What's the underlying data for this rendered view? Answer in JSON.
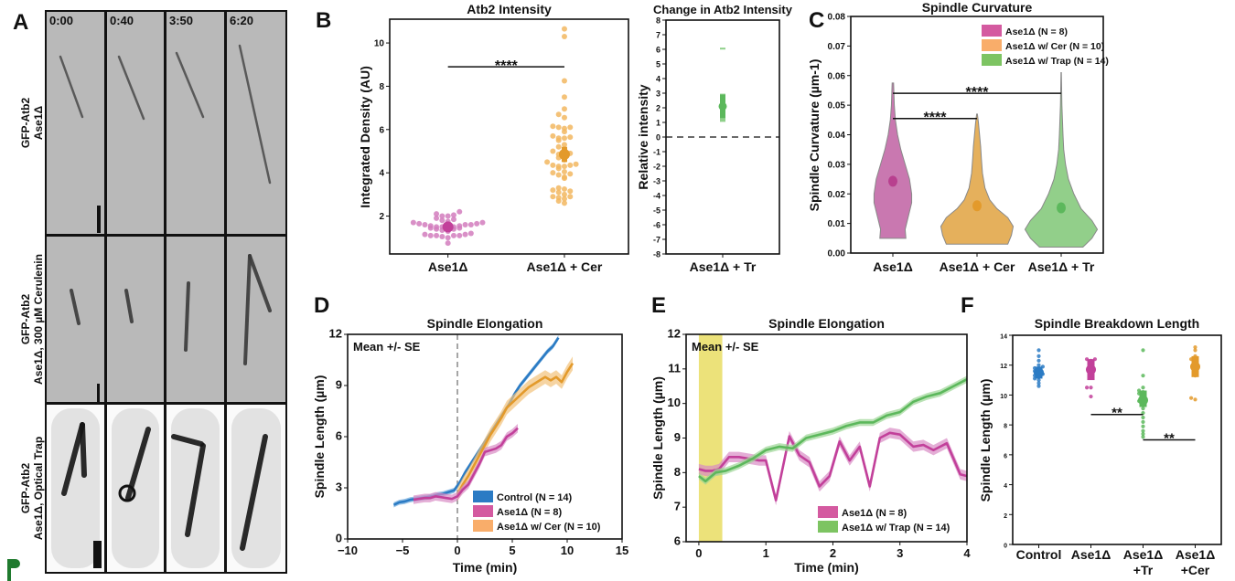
{
  "panel_letters": [
    "A",
    "B",
    "C",
    "D",
    "E",
    "F"
  ],
  "logo_text": "P",
  "colors": {
    "pink": "#c2409a",
    "pink_light": "#d27cbd",
    "orange": "#e39a2b",
    "orange_light": "#f2b760",
    "green": "#5cb85c",
    "green_light": "#8fd08a",
    "blue": "#2b7bc4",
    "shade": "#ece27a"
  },
  "panel_a": {
    "times": [
      "0:00",
      "0:40",
      "3:50",
      "6:20"
    ],
    "rows": [
      {
        "line1": "GFP-Atb2",
        "line2": "Ase1Δ"
      },
      {
        "line1": "GFP-Atb2",
        "line2": "Ase1Δ, 300 µM Cerulenin"
      },
      {
        "line1": "GFP-Atb2",
        "line2": "Ase1Δ, Optical Trap"
      }
    ]
  },
  "chart_data": [
    {
      "type": "scatter",
      "title": "Atb2 Intensity",
      "xlabel": "",
      "ylabel": "Integrated Density (AU)",
      "categories": [
        "Ase1Δ",
        "Ase1Δ + Cer"
      ],
      "ylim": [
        0.25,
        11.1
      ],
      "yticks": [
        "2",
        "4",
        "6",
        "8",
        "10"
      ],
      "groups": [
        {
          "values": [
            0.75,
            1.0,
            1.05,
            1.1,
            1.1,
            1.1,
            1.1,
            1.15,
            1.15,
            1.2,
            1.3,
            1.35,
            1.4,
            1.4,
            1.45,
            1.45,
            1.5,
            1.5,
            1.5,
            1.5,
            1.55,
            1.55,
            1.6,
            1.6,
            1.6,
            1.65,
            1.65,
            1.7,
            1.7,
            1.75,
            1.8,
            1.85,
            1.9,
            2.0,
            2.0,
            2.05,
            2.1,
            2.2
          ],
          "mean": 1.5,
          "ci": [
            1.35,
            1.65
          ],
          "color": "pink"
        },
        {
          "values": [
            2.6,
            2.7,
            2.8,
            2.85,
            2.9,
            2.9,
            3.0,
            3.1,
            3.15,
            3.2,
            3.25,
            3.3,
            3.75,
            3.8,
            3.9,
            3.95,
            4.0,
            4.05,
            4.2,
            4.3,
            4.3,
            4.35,
            4.35,
            4.4,
            4.5,
            4.6,
            4.7,
            4.8,
            4.85,
            4.9,
            5.0,
            5.1,
            5.2,
            5.3,
            5.5,
            5.6,
            5.6,
            5.65,
            5.7,
            5.9,
            6.05,
            6.1,
            6.1,
            6.15,
            6.55,
            6.7,
            6.95,
            7.5,
            8.25,
            10.3,
            10.65
          ],
          "mean": 4.85,
          "ci": [
            4.5,
            5.2
          ],
          "color": "orange"
        }
      ],
      "significance": [
        {
          "from": 0,
          "to": 1,
          "y": 8.9,
          "label": "****"
        }
      ],
      "grid": false
    },
    {
      "type": "scatter",
      "title": "Change in Atb2 Intensity",
      "xlabel": "",
      "ylabel": "Relative intensity",
      "categories": [
        "Ase1Δ + Tr"
      ],
      "ylim": [
        -8,
        8
      ],
      "yticks": [
        "-8",
        "-7",
        "-6",
        "-5",
        "-4",
        "-3",
        "-2",
        "-1",
        "0",
        "1",
        "2",
        "3",
        "4",
        "5",
        "6",
        "7",
        "8"
      ],
      "groups": [
        {
          "values": [
            1.1,
            1.2,
            1.3,
            1.5,
            1.6,
            1.8,
            2.0,
            2.1,
            2.2,
            2.4,
            2.6,
            2.8,
            2.9,
            6.05
          ],
          "mean": 2.1,
          "ci": [
            1.3,
            2.9
          ],
          "color": "green"
        }
      ],
      "reference_line": 0,
      "grid": false
    },
    {
      "type": "violin",
      "title": "Spindle Curvature",
      "xlabel": "",
      "ylabel": "Spindle Curvature  (µm-1)",
      "categories": [
        "Ase1Δ",
        "Ase1Δ + Cer",
        "Ase1Δ + Tr"
      ],
      "ylim": [
        0,
        0.08
      ],
      "yticks": [
        "0.00",
        "0.01",
        "0.02",
        "0.03",
        "0.04",
        "0.05",
        "0.06",
        "0.07",
        "0.08"
      ],
      "legend": {
        "placement": "top-right",
        "entries": [
          {
            "label": "Ase1Δ (N = 8)",
            "color": "#d45aa0"
          },
          {
            "label": "Ase1Δ w/ Cer (N = 10)",
            "color": "#f9ad6a"
          },
          {
            "label": "Ase1Δ w/ Trap (N = 14)",
            "color": "#7dc462"
          }
        ]
      },
      "violins": [
        {
          "mean": 0.0243,
          "ci": [
            0.0225,
            0.026
          ],
          "fill": "#c978b0",
          "dot": "#b8408f",
          "profile": [
            [
              0.005,
              0.36
            ],
            [
              0.008,
              0.34
            ],
            [
              0.012,
              0.42
            ],
            [
              0.017,
              0.52
            ],
            [
              0.02,
              0.52
            ],
            [
              0.025,
              0.46
            ],
            [
              0.03,
              0.34
            ],
            [
              0.035,
              0.22
            ],
            [
              0.04,
              0.13
            ],
            [
              0.045,
              0.07
            ],
            [
              0.05,
              0.04
            ],
            [
              0.0575,
              0.02
            ]
          ]
        },
        {
          "mean": 0.016,
          "ci": [
            0.0145,
            0.0175
          ],
          "fill": "#e5b05c",
          "dot": "#e39a2b",
          "profile": [
            [
              0.003,
              0.85
            ],
            [
              0.006,
              0.95
            ],
            [
              0.009,
              1.0
            ],
            [
              0.012,
              0.85
            ],
            [
              0.015,
              0.55
            ],
            [
              0.018,
              0.35
            ],
            [
              0.022,
              0.22
            ],
            [
              0.027,
              0.15
            ],
            [
              0.032,
              0.12
            ],
            [
              0.036,
              0.1
            ],
            [
              0.04,
              0.07
            ],
            [
              0.044,
              0.04
            ],
            [
              0.047,
              0.01
            ]
          ]
        },
        {
          "mean": 0.0153,
          "ci": [
            0.014,
            0.0165
          ],
          "fill": "#92cf8a",
          "dot": "#5cb85c",
          "profile": [
            [
              0.002,
              0.6
            ],
            [
              0.005,
              0.85
            ],
            [
              0.008,
              1.0
            ],
            [
              0.011,
              0.85
            ],
            [
              0.015,
              0.55
            ],
            [
              0.02,
              0.35
            ],
            [
              0.025,
              0.2
            ],
            [
              0.03,
              0.12
            ],
            [
              0.035,
              0.07
            ],
            [
              0.04,
              0.05
            ],
            [
              0.045,
              0.035
            ],
            [
              0.05,
              0.02
            ],
            [
              0.061,
              0.005
            ]
          ]
        }
      ],
      "significance": [
        {
          "from": 0,
          "to": 1,
          "y": 0.0455,
          "label": "****"
        },
        {
          "from": 0,
          "to": 2,
          "y": 0.054,
          "label": "****"
        }
      ],
      "grid": false
    },
    {
      "type": "line",
      "title": "Spindle Elongation",
      "xlabel": "Time (min)",
      "ylabel": "Spindle Length  (µm)",
      "xlim": [
        -10,
        15
      ],
      "ylim": [
        0,
        12
      ],
      "xticks": [
        "−10",
        "−5",
        "0",
        "5",
        "10",
        "15"
      ],
      "yticks": [
        "0",
        "3",
        "6",
        "9",
        "12"
      ],
      "annotation": "Mean +/- SE",
      "vertical_line": 0,
      "legend": {
        "placement": "bottom-right",
        "entries": [
          {
            "label": "Control (N = 14)",
            "color": "#2b7bc4"
          },
          {
            "label": "Ase1Δ (N = 8)",
            "color": "#d45aa0"
          },
          {
            "label": "Ase1Δ w/ Cer (N = 10)",
            "color": "#f9ad6a"
          }
        ]
      },
      "series": [
        {
          "color": "#2b7bc4",
          "band": "#6aa6dc",
          "se": 0.15,
          "x": [
            -5.8,
            -5.3,
            -4.8,
            -4.3,
            -3.8,
            -3.3,
            -2.8,
            -2.3,
            -1.8,
            -1.3,
            -0.8,
            -0.3,
            0.2,
            0.7,
            1.2,
            1.7,
            2.2,
            2.7,
            3.2,
            3.7,
            4.2,
            4.7,
            5.2,
            5.7,
            6.2,
            6.7,
            7.2,
            7.7,
            8.2,
            8.7,
            9.2
          ],
          "y": [
            2.0,
            2.15,
            2.2,
            2.3,
            2.35,
            2.4,
            2.45,
            2.5,
            2.6,
            2.65,
            2.75,
            2.85,
            3.3,
            3.9,
            4.4,
            4.9,
            5.4,
            5.9,
            6.4,
            6.9,
            7.4,
            7.9,
            8.5,
            9.0,
            9.4,
            9.8,
            10.2,
            10.6,
            11.0,
            11.3,
            11.8
          ]
        },
        {
          "color": "#e39a2b",
          "band": "#f2c27a",
          "se": 0.4,
          "x": [
            0,
            0.5,
            1,
            1.5,
            2,
            2.5,
            3,
            3.5,
            4,
            4.5,
            5,
            5.5,
            6,
            6.5,
            7,
            7.5,
            8,
            8.5,
            9,
            9.5,
            10,
            10.5
          ],
          "y": [
            2.6,
            3.2,
            3.7,
            4.3,
            4.9,
            5.5,
            6.1,
            6.6,
            7.1,
            7.7,
            8.0,
            8.3,
            8.6,
            8.9,
            9.1,
            9.3,
            9.5,
            9.3,
            9.5,
            9.2,
            9.8,
            10.3
          ]
        },
        {
          "color": "#c2409a",
          "band": "#d98cc4",
          "se": 0.25,
          "x": [
            -4,
            -3.5,
            -3,
            -2.5,
            -2,
            -1.5,
            -1,
            -0.5,
            0,
            0.5,
            1,
            1.5,
            2,
            2.5,
            3,
            3.5,
            4,
            4.5,
            5,
            5.5
          ],
          "y": [
            2.3,
            2.35,
            2.4,
            2.4,
            2.5,
            2.45,
            2.4,
            2.35,
            2.5,
            2.9,
            3.2,
            3.8,
            4.4,
            5.1,
            5.2,
            5.3,
            5.5,
            6.0,
            6.2,
            6.5
          ]
        }
      ],
      "grid": false
    },
    {
      "type": "line",
      "title": "Spindle Elongation",
      "xlabel": "Time (min)",
      "ylabel": "Spindle Length  (µm)",
      "xlim": [
        -0.19,
        4
      ],
      "ylim": [
        6,
        12
      ],
      "xticks": [
        "0",
        "1",
        "2",
        "3",
        "4"
      ],
      "yticks": [
        "6",
        "7",
        "8",
        "9",
        "10",
        "11",
        "12"
      ],
      "annotation": "Mean +/- SE",
      "shaded_interval": [
        0,
        0.35
      ],
      "legend": {
        "placement": "bottom-right",
        "entries": [
          {
            "label": "Ase1Δ (N = 8)",
            "color": "#d45aa0"
          },
          {
            "label": "Ase1Δ w/ Trap (N = 14)",
            "color": "#7dc462"
          }
        ]
      },
      "series": [
        {
          "color": "#c2409a",
          "band": "#d98cc4",
          "se": 0.15,
          "x": [
            0,
            0.1,
            0.2,
            0.3,
            0.45,
            0.6,
            0.75,
            0.9,
            1.0,
            1.15,
            1.35,
            1.5,
            1.65,
            1.8,
            1.95,
            2.1,
            2.25,
            2.4,
            2.55,
            2.7,
            2.85,
            3.0,
            3.2,
            3.35,
            3.5,
            3.7,
            3.9,
            4.0
          ],
          "y": [
            8.1,
            8.05,
            8.05,
            8.1,
            8.45,
            8.45,
            8.4,
            8.35,
            8.35,
            7.2,
            9.05,
            8.5,
            8.3,
            7.6,
            7.9,
            8.9,
            8.35,
            8.75,
            7.6,
            9.0,
            9.15,
            9.1,
            8.75,
            8.8,
            8.65,
            8.85,
            7.95,
            7.9
          ]
        },
        {
          "color": "#5cb85c",
          "band": "#9cd596",
          "se": 0.1,
          "x": [
            0,
            0.1,
            0.25,
            0.4,
            0.6,
            0.8,
            1.0,
            1.2,
            1.4,
            1.6,
            1.8,
            2.0,
            2.2,
            2.4,
            2.6,
            2.8,
            3.0,
            3.2,
            3.4,
            3.6,
            3.8,
            4.0
          ],
          "y": [
            7.9,
            7.75,
            8.0,
            8.05,
            8.2,
            8.4,
            8.65,
            8.75,
            8.7,
            9.0,
            9.1,
            9.2,
            9.35,
            9.45,
            9.45,
            9.65,
            9.75,
            10.05,
            10.2,
            10.3,
            10.5,
            10.7
          ]
        }
      ],
      "grid": false
    },
    {
      "type": "scatter",
      "title": "Spindle Breakdown Length",
      "xlabel": "",
      "ylabel": "Spindle Length  (µm)",
      "categories": [
        [
          "Control"
        ],
        [
          "Ase1Δ"
        ],
        [
          "Ase1Δ",
          "+Tr"
        ],
        [
          "Ase1Δ",
          "+Cer"
        ]
      ],
      "ylim": [
        0,
        14
      ],
      "yticks": [
        "0",
        "2",
        "4",
        "6",
        "8",
        "10",
        "12",
        "14"
      ],
      "groups": [
        {
          "values": [
            10.6,
            10.8,
            11.0,
            11.1,
            11.2,
            11.3,
            11.4,
            11.5,
            11.6,
            11.7,
            11.8,
            11.9,
            12.0,
            12.3,
            12.6,
            13.0
          ],
          "mean": 11.5,
          "ci": [
            11.1,
            11.9
          ],
          "color": "blue"
        },
        {
          "values": [
            9.9,
            10.5,
            10.5,
            11.2,
            11.5,
            11.8,
            12.0,
            12.3,
            12.4,
            12.4
          ],
          "mean": 11.7,
          "ci": [
            11.0,
            12.4
          ],
          "color": "pink"
        },
        {
          "values": [
            7.2,
            7.4,
            7.6,
            7.9,
            8.2,
            8.5,
            8.8,
            9.1,
            9.4,
            9.6,
            9.8,
            10.0,
            10.1,
            10.2,
            10.3,
            10.5,
            11.3,
            13.0
          ],
          "mean": 9.65,
          "ci": [
            9.2,
            10.3
          ],
          "color": "green"
        },
        {
          "values": [
            9.7,
            9.8,
            11.3,
            11.5,
            11.8,
            12.0,
            12.2,
            12.4,
            12.6,
            13.0,
            13.2
          ],
          "mean": 11.9,
          "ci": [
            11.2,
            12.6
          ],
          "color": "orange"
        }
      ],
      "significance": [
        {
          "from": 1,
          "to": 2,
          "y": 8.7,
          "label": "**"
        },
        {
          "from": 2,
          "to": 3,
          "y": 7.0,
          "label": "**"
        }
      ],
      "grid": false
    }
  ]
}
